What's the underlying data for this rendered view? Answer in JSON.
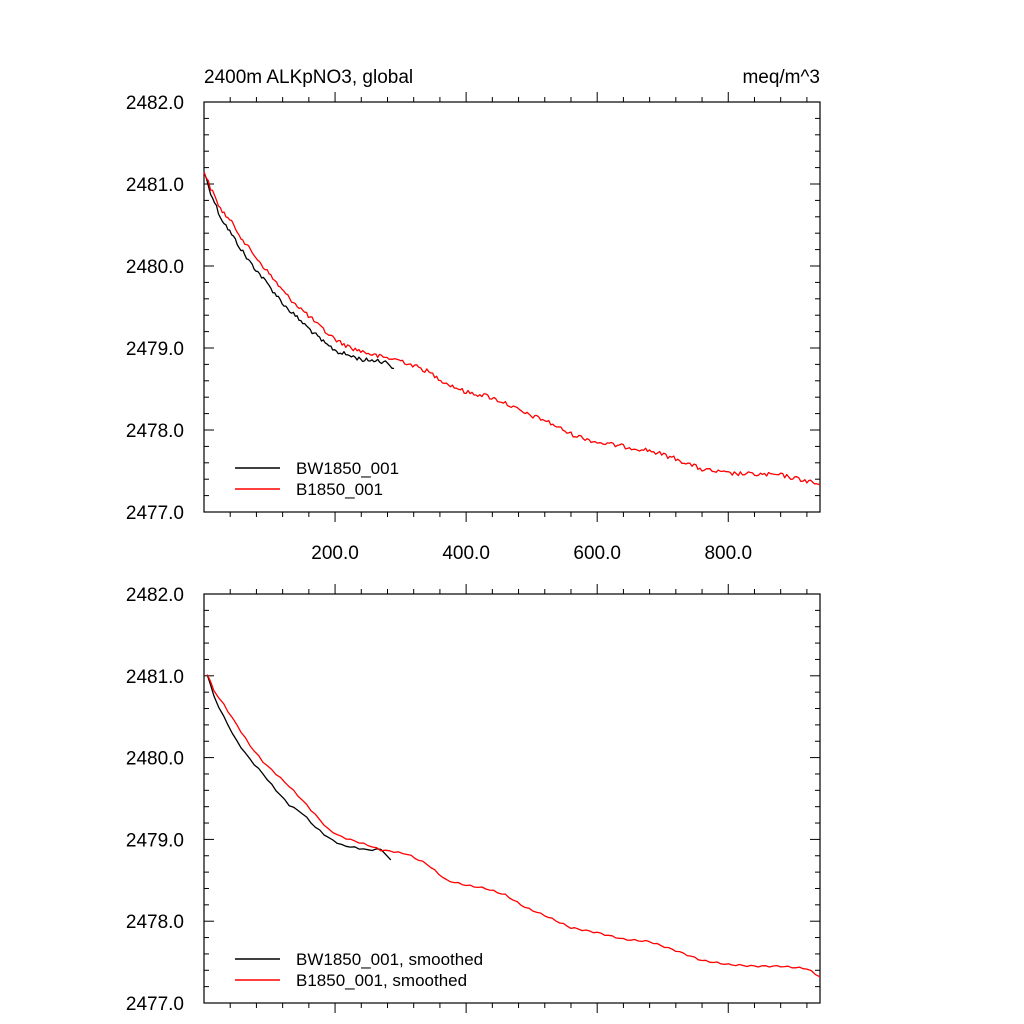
{
  "chart_data": [
    {
      "type": "line",
      "title": "2400m ALKpNO3, global",
      "units": "meq/m^3",
      "xlim": [
        0,
        940
      ],
      "ylim": [
        2477.0,
        2482.0
      ],
      "x_ticks": [
        "200.0",
        "400.0",
        "600.0",
        "800.0"
      ],
      "y_ticks": [
        "2482.0",
        "2481.0",
        "2480.0",
        "2479.0",
        "2478.0",
        "2477.0"
      ],
      "legend": "bottom-left",
      "series": [
        {
          "name": "BW1850_001",
          "color": "#000000",
          "noisy": true,
          "x": [
            0,
            10,
            25,
            45,
            65,
            85,
            105,
            125,
            145,
            165,
            185,
            205,
            225,
            245,
            265,
            280,
            290
          ],
          "y": [
            2481.15,
            2480.9,
            2480.6,
            2480.35,
            2480.1,
            2479.9,
            2479.7,
            2479.5,
            2479.35,
            2479.2,
            2479.05,
            2478.95,
            2478.9,
            2478.85,
            2478.85,
            2478.82,
            2478.75
          ]
        },
        {
          "name": "B1850_001",
          "color": "#ff0000",
          "noisy": true,
          "x": [
            0,
            10,
            25,
            45,
            65,
            85,
            105,
            125,
            145,
            165,
            185,
            205,
            225,
            245,
            265,
            285,
            300,
            340,
            370,
            400,
            430,
            460,
            490,
            520,
            560,
            600,
            640,
            680,
            720,
            760,
            800,
            840,
            880,
            920,
            940
          ],
          "y": [
            2481.15,
            2480.95,
            2480.7,
            2480.5,
            2480.25,
            2480.05,
            2479.85,
            2479.65,
            2479.5,
            2479.35,
            2479.2,
            2479.08,
            2479.0,
            2478.95,
            2478.9,
            2478.87,
            2478.85,
            2478.72,
            2478.57,
            2478.46,
            2478.42,
            2478.33,
            2478.2,
            2478.12,
            2477.95,
            2477.85,
            2477.8,
            2477.75,
            2477.65,
            2477.52,
            2477.47,
            2477.46,
            2477.45,
            2477.38,
            2477.33
          ]
        }
      ]
    },
    {
      "type": "line",
      "title": "",
      "xlim": [
        0,
        940
      ],
      "ylim": [
        2477.0,
        2482.0
      ],
      "y_ticks": [
        "2482.0",
        "2481.0",
        "2480.0",
        "2479.0",
        "2478.0",
        "2477.0"
      ],
      "legend": "bottom-left",
      "series": [
        {
          "name": "BW1850_001, smoothed",
          "color": "#000000",
          "noisy": false,
          "x": [
            5,
            15,
            30,
            50,
            70,
            90,
            110,
            130,
            150,
            170,
            190,
            210,
            230,
            250,
            270,
            285
          ],
          "y": [
            2481.02,
            2480.75,
            2480.5,
            2480.2,
            2479.98,
            2479.8,
            2479.6,
            2479.42,
            2479.32,
            2479.15,
            2479.02,
            2478.93,
            2478.9,
            2478.87,
            2478.88,
            2478.75
          ]
        },
        {
          "name": "B1850_001, smoothed",
          "color": "#ff0000",
          "noisy": false,
          "x": [
            5,
            15,
            30,
            50,
            70,
            90,
            110,
            130,
            150,
            170,
            190,
            210,
            230,
            250,
            270,
            290,
            310,
            340,
            370,
            400,
            430,
            460,
            490,
            520,
            560,
            600,
            640,
            680,
            720,
            760,
            800,
            840,
            880,
            920,
            940
          ],
          "y": [
            2481.02,
            2480.82,
            2480.65,
            2480.4,
            2480.15,
            2479.95,
            2479.8,
            2479.65,
            2479.48,
            2479.3,
            2479.12,
            2479.03,
            2478.98,
            2478.93,
            2478.87,
            2478.85,
            2478.82,
            2478.7,
            2478.5,
            2478.44,
            2478.4,
            2478.32,
            2478.17,
            2478.07,
            2477.92,
            2477.86,
            2477.78,
            2477.75,
            2477.64,
            2477.52,
            2477.47,
            2477.45,
            2477.45,
            2477.42,
            2477.32
          ]
        }
      ]
    }
  ]
}
